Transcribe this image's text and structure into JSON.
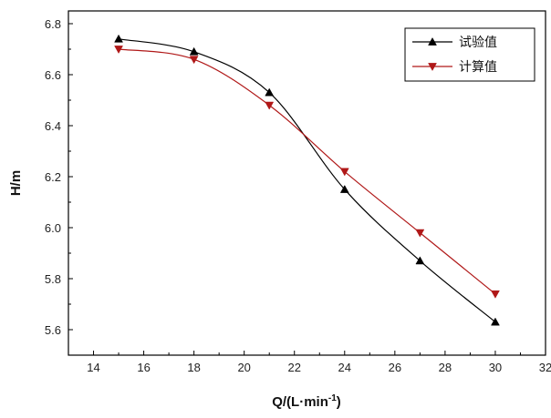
{
  "chart_data": {
    "type": "line",
    "title": "",
    "xlabel_main": "Q/(L·min",
    "xlabel_sup": "-1",
    "xlabel_close": ")",
    "ylabel": "H/m",
    "xlim": [
      13,
      32
    ],
    "ylim": [
      5.5,
      6.85
    ],
    "x_ticks": [
      14,
      16,
      18,
      20,
      22,
      24,
      26,
      28,
      30,
      32
    ],
    "y_ticks": [
      5.6,
      5.8,
      6.0,
      6.2,
      6.4,
      6.6,
      6.8
    ],
    "x_tick_labels": [
      "14",
      "16",
      "18",
      "20",
      "22",
      "24",
      "26",
      "28",
      "30",
      "32"
    ],
    "y_tick_labels": [
      "5.6",
      "5.8",
      "6.0",
      "6.2",
      "6.4",
      "6.6",
      "6.8"
    ],
    "grid": false,
    "legend_position": "top-right",
    "x": [
      15,
      18,
      21,
      24,
      27,
      30
    ],
    "series": [
      {
        "name": "试验值",
        "values": [
          6.74,
          6.69,
          6.53,
          6.15,
          5.87,
          5.63
        ],
        "color": "#000000",
        "marker": "triangle-up"
      },
      {
        "name": "计算值",
        "values": [
          6.7,
          6.66,
          6.48,
          6.22,
          5.98,
          5.74
        ],
        "color": "#b01818",
        "marker": "triangle-down"
      }
    ]
  }
}
